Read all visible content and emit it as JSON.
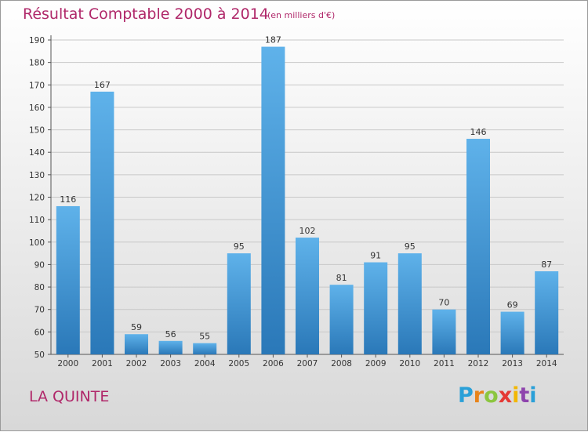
{
  "chart_data": {
    "type": "bar",
    "title": "Résultat Comptable 2000 à 2014",
    "subtitle": "(en milliers d'€)",
    "categories": [
      "2000",
      "2001",
      "2002",
      "2003",
      "2004",
      "2005",
      "2006",
      "2007",
      "2008",
      "2009",
      "2010",
      "2011",
      "2012",
      "2013",
      "2014"
    ],
    "values": [
      116,
      167,
      59,
      56,
      55,
      95,
      187,
      102,
      81,
      91,
      95,
      70,
      146,
      69,
      87
    ],
    "ylim": [
      50,
      190
    ],
    "yticks": [
      50,
      60,
      70,
      80,
      90,
      100,
      110,
      120,
      130,
      140,
      150,
      160,
      170,
      180,
      190
    ],
    "xlabel": "",
    "ylabel": "",
    "grid": true,
    "bar_color": "#3d94d6"
  },
  "place_name": "LA QUINTE",
  "logo": {
    "letters": [
      "P",
      "r",
      "o",
      "x",
      "i",
      "t",
      "i"
    ],
    "colors": [
      "#2aa0d8",
      "#e8841a",
      "#8cc63f",
      "#e53935",
      "#f2b705",
      "#8e44ad",
      "#2aa0d8"
    ]
  }
}
